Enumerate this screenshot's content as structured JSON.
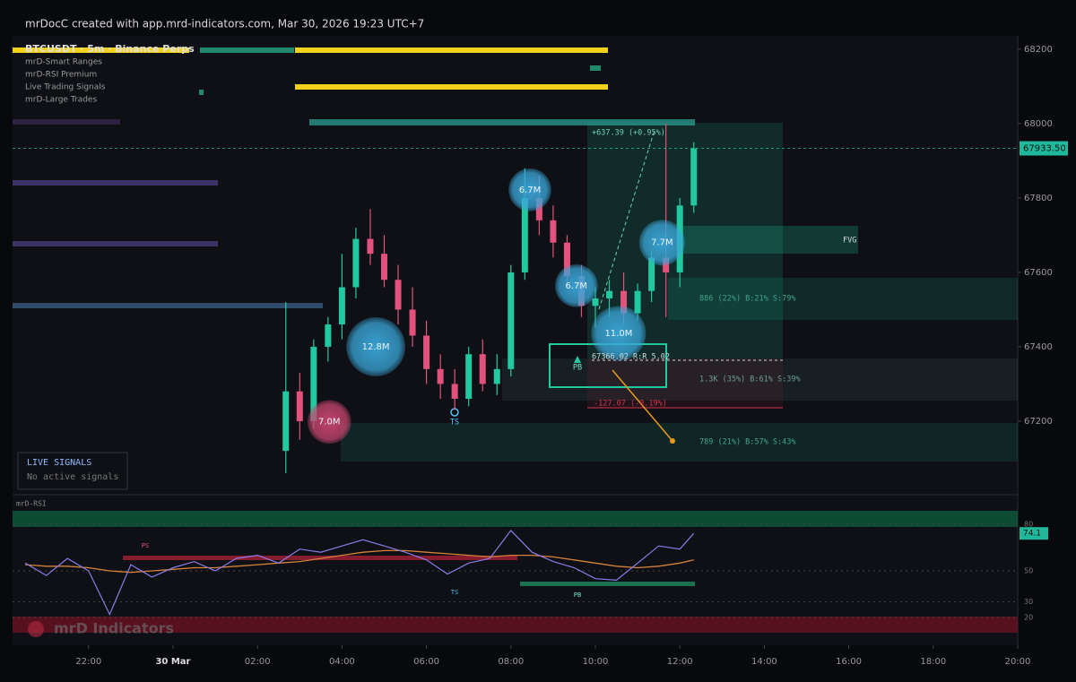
{
  "chart_data": {
    "type": "candlestick",
    "header": "mrDocC  created with app.mrd-indicators.com, Mar 30, 2026 19:23 UTC+7",
    "symbol": "BTCUSDT · 5m · Binance Perps",
    "indicators": [
      "mrD-Smart Ranges",
      "mrD-RSI Premium",
      "Live Trading Signals",
      "mrD-Large Trades"
    ],
    "signals_panel": {
      "title": "LIVE SIGNALS",
      "status": "No active signals"
    },
    "watermark": "mrD Indicators",
    "up_color": "#22c9a0",
    "down_color": "#e2527c",
    "xlim": [
      20.2,
      44.0
    ],
    "xticks": [
      {
        "value": 22,
        "label": "22:00"
      },
      {
        "value": 24,
        "label": "30 Mar"
      },
      {
        "value": 26,
        "label": "02:00"
      },
      {
        "value": 28,
        "label": "04:00"
      },
      {
        "value": 30,
        "label": "06:00"
      },
      {
        "value": 32,
        "label": "08:00"
      },
      {
        "value": 34,
        "label": "10:00"
      },
      {
        "value": 36,
        "label": "12:00"
      },
      {
        "value": 38,
        "label": "14:00"
      },
      {
        "value": 40,
        "label": "16:00"
      },
      {
        "value": 42,
        "label": "18:00"
      },
      {
        "value": 44,
        "label": "20:00"
      }
    ],
    "ylim": [
      67007,
      68236
    ],
    "yticks": [
      67200,
      67400,
      67600,
      67800,
      68000,
      68200
    ],
    "last_price": {
      "value": 67933.5,
      "label": "67933.50"
    },
    "candles": {
      "x": [
        26.67,
        27,
        27.33,
        27.67,
        28,
        28.33,
        28.67,
        29,
        29.33,
        29.67,
        30,
        30.33,
        30.67,
        31,
        31.33,
        31.67,
        32,
        32.33,
        32.67,
        33,
        33.33,
        33.67,
        34,
        34.33,
        34.67,
        35,
        35.33,
        35.67,
        36,
        36.33
      ],
      "open": [
        67120,
        67280,
        67200,
        67400,
        67460,
        67560,
        67690,
        67650,
        67580,
        67500,
        67430,
        67340,
        67300,
        67260,
        67380,
        67300,
        67340,
        67600,
        67800,
        67740,
        67680,
        67590,
        67510,
        67530,
        67550,
        67490,
        67550,
        67640,
        67600,
        67780
      ],
      "high": [
        67520,
        67330,
        67420,
        67480,
        67650,
        67720,
        67770,
        67700,
        67620,
        67560,
        67470,
        67380,
        67340,
        67400,
        67420,
        67380,
        67620,
        67880,
        67860,
        67780,
        67700,
        67620,
        67560,
        67580,
        67600,
        67570,
        67660,
        68000,
        67800,
        67950
      ],
      "low": [
        67060,
        67150,
        67180,
        67360,
        67420,
        67530,
        67620,
        67560,
        67460,
        67400,
        67300,
        67260,
        67230,
        67240,
        67280,
        67270,
        67320,
        67580,
        67700,
        67640,
        67560,
        67480,
        67450,
        67480,
        67460,
        67470,
        67520,
        67480,
        67560,
        67760
      ],
      "close": [
        67280,
        67200,
        67400,
        67460,
        67560,
        67690,
        67650,
        67580,
        67500,
        67430,
        67340,
        67300,
        67260,
        67380,
        67300,
        67340,
        67600,
        67800,
        67740,
        67680,
        67590,
        67510,
        67530,
        67550,
        67490,
        67550,
        67640,
        67600,
        67780,
        67933.5
      ]
    },
    "large_trades": {
      "x": [
        32.45,
        35.58,
        33.55,
        34.55,
        28.8,
        27.7
      ],
      "price": [
        67822,
        67680,
        67564,
        67436,
        67400,
        67198
      ],
      "size": [
        6.7,
        7.7,
        6.7,
        11.0,
        12.8,
        7.0
      ],
      "value_labels": [
        "6.7M",
        "7.7M",
        "6.7M",
        "11.0M",
        "12.8M",
        "7.0M"
      ],
      "colors": [
        "#3aa6d8",
        "#3aa6d8",
        "#3aa6d8",
        "#3aa6d8",
        "#3aa6d8",
        "#c8456f"
      ]
    },
    "annotations": [
      "+637.39 (+0.95%)",
      "FVG",
      "886 (22%)  B:21% S:79%",
      "67366.02  R:R 5.02",
      "PB",
      "TS",
      "1.3K (35%)  B:61% S:39%",
      "-127.07 (-0.19%)",
      "789 (21%)  B:57% S:43%"
    ],
    "rsi": {
      "label": "mrD-RSI",
      "color": "#8b7be8",
      "ma_color": "#d4823a",
      "signals": [
        "PS",
        "TS",
        "PB"
      ],
      "ylim": [
        3.3,
        91.5
      ],
      "yticks": [
        20,
        30,
        50,
        80
      ],
      "x": [
        20.5,
        21,
        21.5,
        22,
        22.5,
        23,
        23.5,
        24,
        24.5,
        25,
        25.5,
        26,
        26.5,
        27,
        27.5,
        28,
        28.5,
        29,
        29.5,
        30,
        30.5,
        31,
        31.5,
        32,
        32.5,
        33,
        33.5,
        34,
        34.5,
        35,
        35.5,
        36,
        36.33
      ],
      "values": [
        55,
        47,
        58,
        50,
        22,
        54,
        46,
        52,
        56,
        50,
        58,
        60,
        55,
        64,
        62,
        66,
        70,
        66,
        62,
        57,
        48,
        55,
        58,
        76,
        62,
        56,
        52,
        45,
        44,
        55,
        66,
        64,
        74.1
      ],
      "ma": [
        54,
        53,
        53,
        52,
        50,
        49,
        50,
        51,
        52,
        52,
        53,
        54,
        55,
        56,
        58,
        60,
        62,
        63,
        63,
        62,
        61,
        60,
        59,
        60,
        60,
        59,
        57,
        55,
        53,
        52,
        53,
        55,
        57
      ]
    }
  }
}
